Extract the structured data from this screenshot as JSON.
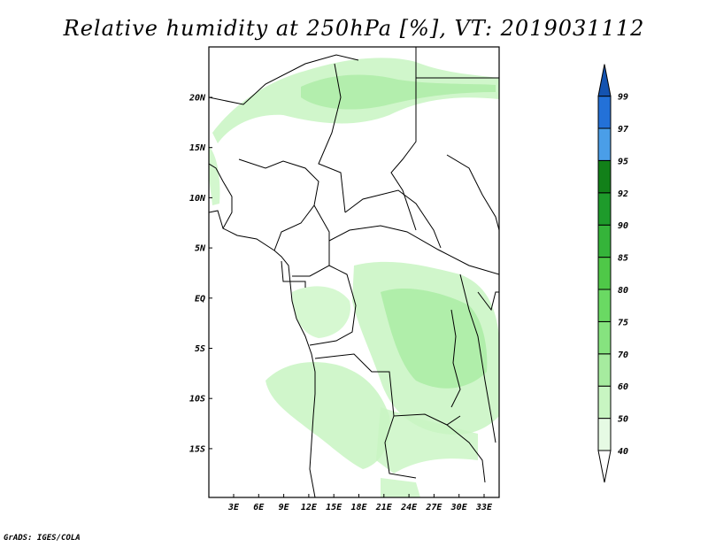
{
  "title": "Relative humidity at 250hPa [%], VT: 2019031112",
  "credit": "GrADS: IGES/COLA",
  "map": {
    "lon_labels": [
      "3E",
      "6E",
      "9E",
      "12E",
      "15E",
      "18E",
      "21E",
      "24E",
      "27E",
      "30E",
      "33E"
    ],
    "lat_labels": [
      "20N",
      "15N",
      "10N",
      "5N",
      "EQ",
      "5S",
      "10S",
      "15S"
    ],
    "colors": {
      "frame": "#000000",
      "borders": "#000000"
    }
  },
  "legend": {
    "levels": [
      "40",
      "50",
      "60",
      "70",
      "75",
      "80",
      "85",
      "90",
      "92",
      "95",
      "97",
      "99"
    ],
    "colors": [
      "#ffffff",
      "#e6fae4",
      "#c8f5c2",
      "#a6eb9f",
      "#86e37f",
      "#6ad963",
      "#4fc848",
      "#35b43a",
      "#1e9b2b",
      "#128019",
      "#4a9ee8",
      "#2371d8",
      "#1453b0"
    ]
  }
}
